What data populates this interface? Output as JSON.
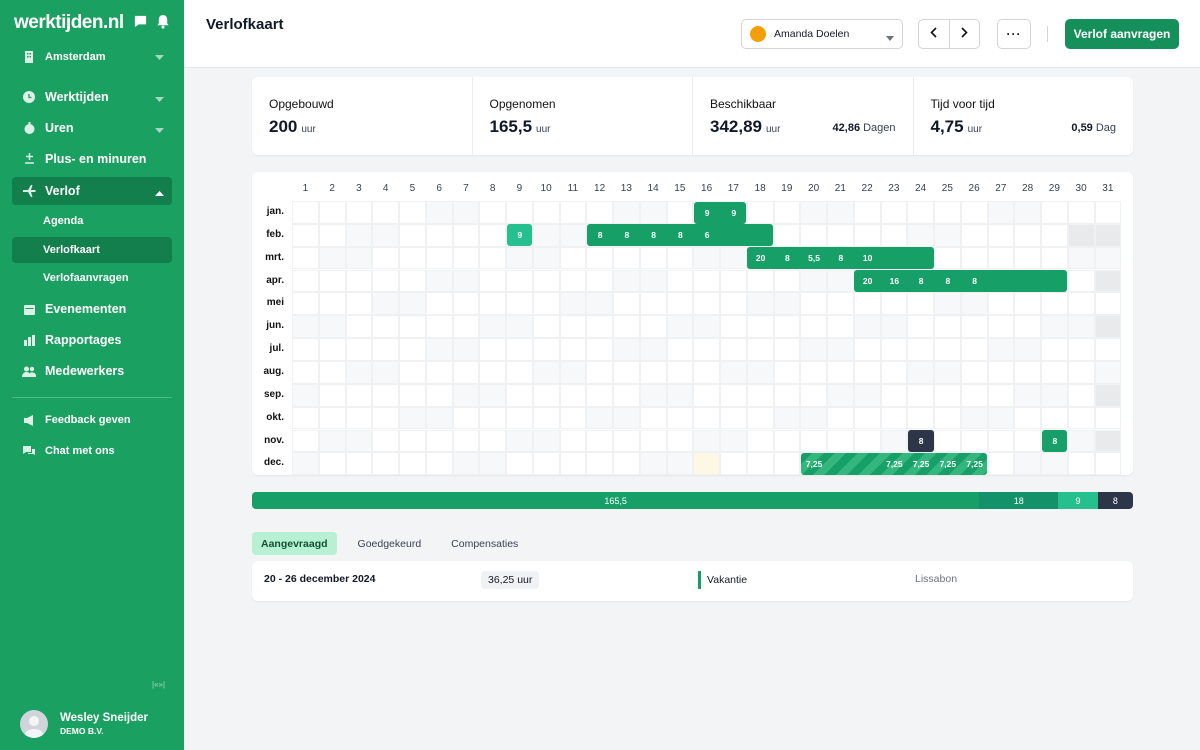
{
  "app": {
    "brand": "werktijden.nl",
    "location": "Amsterdam",
    "nav": {
      "werktijden": "Werktijden",
      "uren": "Uren",
      "plusmin": "Plus- en minuren",
      "verlof": "Verlof",
      "agenda": "Agenda",
      "verlofkaart": "Verlofkaart",
      "verlofaanvragen": "Verlofaanvragen",
      "evenementen": "Evenementen",
      "rapportages": "Rapportages",
      "medewerkers": "Medewerkers",
      "feedback": "Feedback geven",
      "chat": "Chat met ons"
    },
    "collapse_label": "|«»|",
    "user": {
      "name": "Wesley Sneijder",
      "company": "DEMO B.V."
    }
  },
  "header": {
    "title": "Verlofkaart",
    "selected_employee": "Amanda Doelen",
    "more_label": "···",
    "request_button": "Verlof aanvragen"
  },
  "stats": [
    {
      "label": "Opgebouwd",
      "value": "200",
      "unit": "uur"
    },
    {
      "label": "Opgenomen",
      "value": "165,5",
      "unit": "uur"
    },
    {
      "label": "Beschikbaar",
      "value": "342,89",
      "unit": "uur",
      "side_value": "42,86",
      "side_unit": "Dagen"
    },
    {
      "label": "Tijd voor tijd",
      "value": "4,75",
      "unit": "uur",
      "side_value": "0,59",
      "side_unit": "Dag"
    }
  ],
  "calendar": {
    "days": [
      "1",
      "2",
      "3",
      "4",
      "5",
      "6",
      "7",
      "8",
      "9",
      "10",
      "11",
      "12",
      "13",
      "14",
      "15",
      "16",
      "17",
      "18",
      "19",
      "20",
      "21",
      "22",
      "23",
      "24",
      "25",
      "26",
      "27",
      "28",
      "29",
      "30",
      "31"
    ],
    "months": [
      "jan.",
      "feb.",
      "mrt.",
      "apr.",
      "mei",
      "jun.",
      "jul.",
      "aug.",
      "sep.",
      "okt.",
      "nov.",
      "dec."
    ],
    "month_lengths": [
      31,
      29,
      31,
      30,
      31,
      30,
      31,
      31,
      30,
      31,
      30,
      31
    ],
    "first_weekday": [
      0,
      3,
      4,
      0,
      2,
      5,
      0,
      3,
      6,
      1,
      4,
      6
    ],
    "highlight": {
      "month": 11,
      "day": 16
    },
    "leave_blocks": [
      {
        "month": 0,
        "start": 16,
        "end": 17,
        "style": "green",
        "labels": [
          "9",
          "9"
        ]
      },
      {
        "month": 1,
        "start": 9,
        "end": 9,
        "style": "teal",
        "labels": [
          "9"
        ]
      },
      {
        "month": 1,
        "start": 12,
        "end": 18,
        "style": "green",
        "labels": [
          "8",
          "8",
          "8",
          "8",
          "6",
          "",
          ""
        ]
      },
      {
        "month": 2,
        "start": 18,
        "end": 24,
        "style": "green",
        "labels": [
          "20",
          "8",
          "5,5",
          "8",
          "10",
          "",
          ""
        ]
      },
      {
        "month": 3,
        "start": 22,
        "end": 29,
        "style": "green",
        "labels": [
          "20",
          "16",
          "8",
          "8",
          "8",
          "",
          "",
          ""
        ]
      },
      {
        "month": 10,
        "start": 24,
        "end": 24,
        "style": "dark",
        "labels": [
          "8"
        ]
      },
      {
        "month": 10,
        "start": 29,
        "end": 29,
        "style": "green",
        "labels": [
          "8"
        ]
      },
      {
        "month": 11,
        "start": 20,
        "end": 26,
        "style": "striped",
        "labels": [
          "7,25",
          "",
          "",
          "7,25",
          "7,25",
          "7,25",
          "7,25"
        ]
      }
    ]
  },
  "progress": {
    "segments": [
      {
        "label": "165,5",
        "value": 165.5,
        "color": "#16a068"
      },
      {
        "label": "18",
        "value": 18,
        "color": "#13926a"
      },
      {
        "label": "9",
        "value": 9,
        "color": "#25c08e"
      },
      {
        "label": "8",
        "value": 8,
        "color": "#2d3648"
      }
    ]
  },
  "tabs": [
    "Aangevraagd",
    "Goedgekeurd",
    "Compensaties"
  ],
  "request": {
    "dates": "20 - 26 december 2024",
    "hours": "36,25 uur",
    "type": "Vakantie",
    "location": "Lissabon"
  }
}
